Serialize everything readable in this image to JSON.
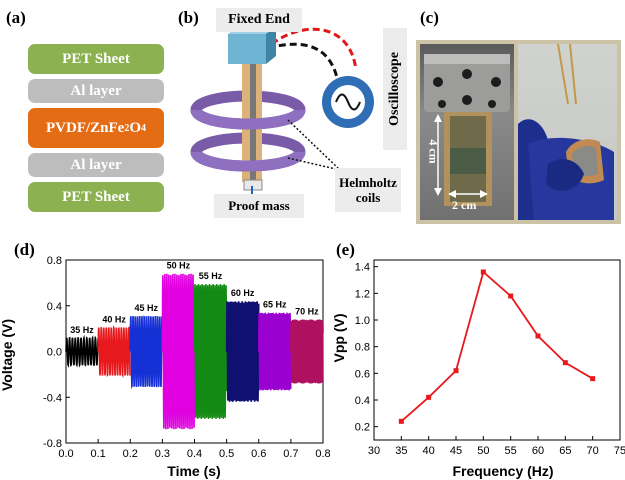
{
  "panel_labels": {
    "a": "(a)",
    "b": "(b)",
    "c": "(c)",
    "d": "(d)",
    "e": "(e)"
  },
  "panel_a": {
    "layers": [
      "PET Sheet",
      "Al layer",
      "PVDF/ZnFe",
      "Al layer",
      "PET Sheet"
    ],
    "pvdf_label": {
      "base": "PVDF/ZnFe",
      "sub1": "2",
      "mid": "O",
      "sub2": "4"
    }
  },
  "panel_b": {
    "fixed_end": "Fixed  End",
    "oscilloscope": "Oscilloscope",
    "proof_mass": "Proof mass",
    "helmholtz": [
      "Helmholtz",
      "coils"
    ]
  },
  "panel_c": {
    "height_label": "4 cm",
    "width_label": "2 cm"
  },
  "colors": {
    "pet": "#8bb150",
    "al": "#bdbdbd",
    "pvdf": "#e46c14",
    "curve_e": "#e8191c"
  },
  "chart_data": [
    {
      "type": "line",
      "title": "",
      "xlabel": "Time (s)",
      "ylabel": "Voltage (V)",
      "xlim": [
        0.0,
        0.8
      ],
      "ylim": [
        -0.8,
        0.8
      ],
      "xticks": [
        "0.0",
        "0.1",
        "0.2",
        "0.3",
        "0.4",
        "0.5",
        "0.6",
        "0.7",
        "0.8"
      ],
      "yticks": [
        "-0.8",
        "-0.4",
        "0.0",
        "0.4",
        "0.8"
      ],
      "series": [
        {
          "label": "35 Hz",
          "color": "#000000",
          "t_start": 0.0,
          "t_end": 0.1,
          "frequency_hz": 35,
          "amplitude": 0.12
        },
        {
          "label": "40 Hz",
          "color": "#e8191c",
          "t_start": 0.1,
          "t_end": 0.2,
          "frequency_hz": 40,
          "amplitude": 0.21
        },
        {
          "label": "45 Hz",
          "color": "#1530d4",
          "t_start": 0.2,
          "t_end": 0.3,
          "frequency_hz": 45,
          "amplitude": 0.31
        },
        {
          "label": "50 Hz",
          "color": "#e000e0",
          "t_start": 0.3,
          "t_end": 0.4,
          "frequency_hz": 50,
          "amplitude": 0.68
        },
        {
          "label": "55 Hz",
          "color": "#138a13",
          "t_start": 0.4,
          "t_end": 0.5,
          "frequency_hz": 55,
          "amplitude": 0.59
        },
        {
          "label": "60 Hz",
          "color": "#101070",
          "t_start": 0.5,
          "t_end": 0.6,
          "frequency_hz": 60,
          "amplitude": 0.44
        },
        {
          "label": "65 Hz",
          "color": "#9a00d0",
          "t_start": 0.6,
          "t_end": 0.7,
          "frequency_hz": 65,
          "amplitude": 0.34
        },
        {
          "label": "70 Hz",
          "color": "#b01060",
          "t_start": 0.7,
          "t_end": 0.8,
          "frequency_hz": 70,
          "amplitude": 0.28
        }
      ]
    },
    {
      "type": "line",
      "title": "",
      "xlabel": "Frequency (Hz)",
      "ylabel": "Vpp (V)",
      "xlim": [
        30,
        75
      ],
      "ylim": [
        0.1,
        1.45
      ],
      "xticks": [
        "30",
        "35",
        "40",
        "45",
        "50",
        "55",
        "60",
        "65",
        "70",
        "75"
      ],
      "yticks": [
        "0.2",
        "0.4",
        "0.6",
        "0.8",
        "1.0",
        "1.2",
        "1.4"
      ],
      "x": [
        35,
        40,
        45,
        50,
        55,
        60,
        65,
        70
      ],
      "y": [
        0.24,
        0.42,
        0.62,
        1.36,
        1.18,
        0.88,
        0.68,
        0.56
      ]
    }
  ]
}
